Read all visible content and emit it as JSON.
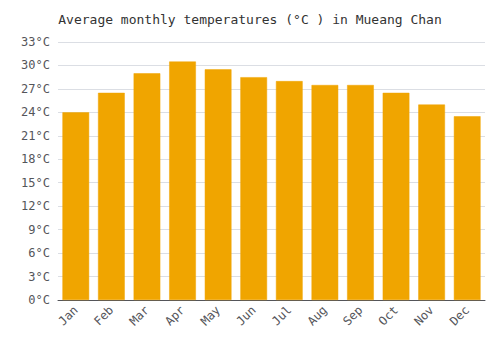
{
  "chart_data": {
    "type": "bar",
    "title": "Average monthly temperatures (°C ) in Mueang Chan",
    "categories": [
      "Jan",
      "Feb",
      "Mar",
      "Apr",
      "May",
      "Jun",
      "Jul",
      "Aug",
      "Sep",
      "Oct",
      "Nov",
      "Dec"
    ],
    "values": [
      24.0,
      26.5,
      29.0,
      30.5,
      29.5,
      28.5,
      28.0,
      27.5,
      27.5,
      26.5,
      25.0,
      23.5
    ],
    "color": "#F0A500",
    "ylim": [
      0,
      33
    ],
    "yticks": [
      {
        "value": 0,
        "label": "0°C"
      },
      {
        "value": 3,
        "label": "3°C"
      },
      {
        "value": 6,
        "label": "6°C"
      },
      {
        "value": 9,
        "label": "9°C"
      },
      {
        "value": 12,
        "label": "12°C"
      },
      {
        "value": 15,
        "label": "15°C"
      },
      {
        "value": 18,
        "label": "18°C"
      },
      {
        "value": 21,
        "label": "21°C"
      },
      {
        "value": 24,
        "label": "24°C"
      },
      {
        "value": 27,
        "label": "27°C"
      },
      {
        "value": 30,
        "label": "30°C"
      },
      {
        "value": 33,
        "label": "33°C"
      }
    ],
    "grid": true
  }
}
